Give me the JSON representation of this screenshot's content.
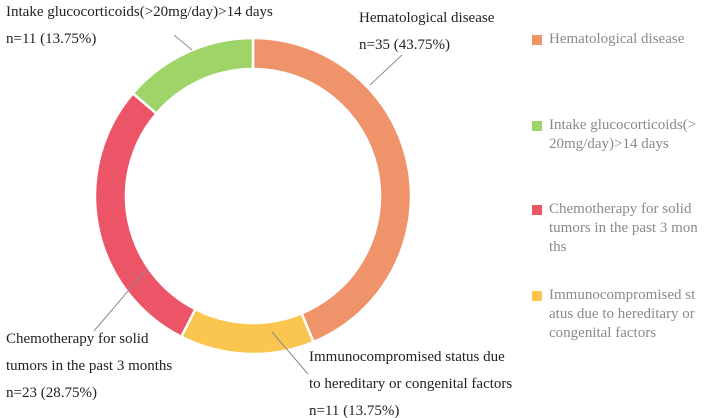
{
  "chart_data": {
    "type": "pie",
    "donut": true,
    "legend_position": "right",
    "categories": [
      "Hematological disease",
      "Immunocompromised status due to hereditary or congenital factors",
      "Chemotherapy for solid tumors in the past 3 months",
      "Intake glucocorticoids(>20mg/day)>14 days"
    ],
    "values": [
      35,
      11,
      23,
      11
    ],
    "percentages": [
      43.75,
      13.75,
      28.75,
      13.75
    ],
    "colors": [
      "#ee936a",
      "#fbc64f",
      "#ec5567",
      "#9ed468"
    ],
    "data_labels": [
      {
        "lines": [
          "Hematological disease",
          "n=35 (43.75%)"
        ]
      },
      {
        "lines": [
          "Immunocompromised status due",
          "to hereditary or congenital factors",
          "n=11 (13.75%)"
        ]
      },
      {
        "lines": [
          "Chemotherapy for solid",
          "tumors in the past 3 months",
          "n=23 (28.75%)"
        ]
      },
      {
        "lines": [
          "Intake glucocorticoids(>20mg/day)>14 days",
          "n=11 (13.75%)"
        ]
      }
    ],
    "legend": [
      {
        "label": "Hematological disease",
        "color": "#ee936a"
      },
      {
        "label": "Intake glucocorticoids(>20mg/day)>14 days",
        "color": "#9ed468"
      },
      {
        "label": "Chemotherapy for solid tumors in the past 3 months",
        "color": "#ec5567"
      },
      {
        "label": "Immunocompromised status due to hereditary or congenital factors",
        "color": "#fbc64f"
      }
    ]
  }
}
